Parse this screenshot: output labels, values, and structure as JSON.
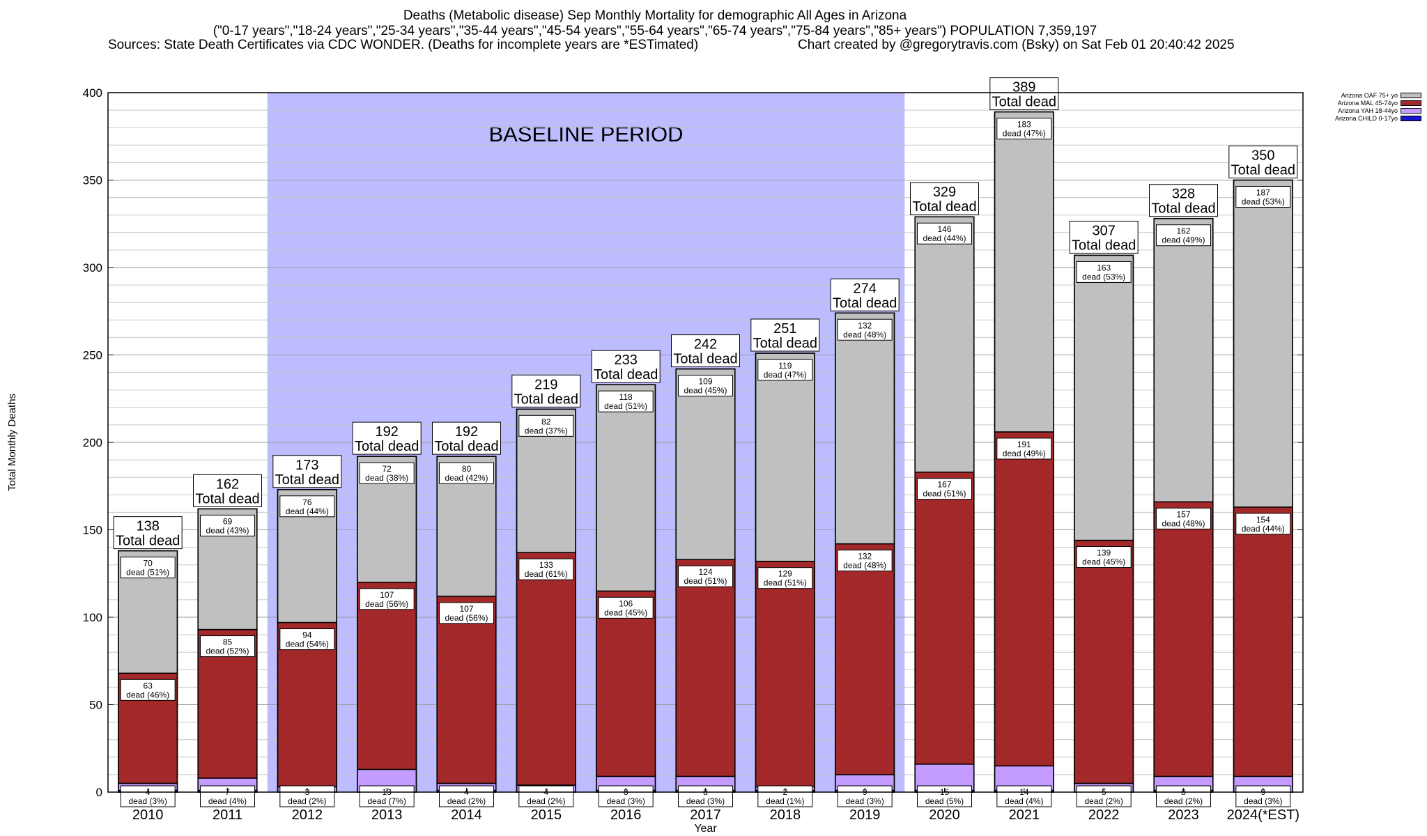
{
  "header": {
    "title_1": "Deaths (Metabolic disease) Sep Monthly Mortality for demographic All Ages in Arizona",
    "title_2": "(\"0-17 years\",\"18-24 years\",\"25-34 years\",\"35-44 years\",\"45-54 years\",\"55-64 years\",\"65-74 years\",\"75-84 years\",\"85+ years\") POPULATION 7,359,197",
    "sources": "Sources: State Death Certificates via CDC WONDER. (Deaths for incomplete years are *ESTimated)",
    "credit": "Chart created by @gregorytravis.com (Bsky) on Sat Feb 01 20:40:42 2025"
  },
  "legend": [
    {
      "label": "Arizona OAF 75+ yo",
      "color": "#c0c0c0"
    },
    {
      "label": "Arizona MAL 45-74yo",
      "color": "#a3282a"
    },
    {
      "label": "Arizona YAH 18-44yo",
      "color": "#c49cff"
    },
    {
      "label": "Arizona CHILD 0-17yo",
      "color": "#1a14c8"
    }
  ],
  "chart_data": {
    "type": "bar",
    "stacked": true,
    "xlabel": "Year",
    "ylabel": "Total Monthly Deaths",
    "ylim": [
      0,
      400
    ],
    "yticks": [
      0,
      50,
      100,
      150,
      200,
      250,
      300,
      350,
      400
    ],
    "grid": true,
    "legend_position": "top-right",
    "baseline": {
      "label": "BASELINE PERIOD",
      "from": "2012",
      "to": "2019",
      "color": "#bcbcff"
    },
    "categories": [
      "2010",
      "2011",
      "2012",
      "2013",
      "2014",
      "2015",
      "2016",
      "2017",
      "2018",
      "2019",
      "2020",
      "2021",
      "2022",
      "2023",
      "2024(*EST)"
    ],
    "totals": [
      138,
      162,
      173,
      192,
      192,
      219,
      233,
      242,
      251,
      274,
      329,
      389,
      307,
      328,
      350
    ],
    "total_label": "Total dead",
    "segment_word": "dead",
    "series": [
      {
        "name": "Arizona CHILD 0-17yo",
        "color": "#1a14c8",
        "values": [
          1,
          1,
          0,
          0,
          1,
          0,
          1,
          1,
          1,
          1,
          1,
          1,
          0,
          1,
          0
        ]
      },
      {
        "name": "Arizona YAH 18-44yo",
        "color": "#c49cff",
        "values": [
          4,
          7,
          3,
          13,
          4,
          4,
          8,
          8,
          2,
          9,
          15,
          14,
          5,
          8,
          9
        ],
        "pct": [
          "3%",
          "4%",
          "2%",
          "7%",
          "2%",
          "2%",
          "3%",
          "3%",
          "1%",
          "3%",
          "5%",
          "4%",
          "2%",
          "2%",
          "3%"
        ]
      },
      {
        "name": "Arizona MAL 45-74yo",
        "color": "#a3282a",
        "values": [
          63,
          85,
          94,
          107,
          107,
          133,
          106,
          124,
          129,
          132,
          167,
          191,
          139,
          157,
          154
        ],
        "pct": [
          "46%",
          "52%",
          "54%",
          "56%",
          "56%",
          "61%",
          "45%",
          "51%",
          "51%",
          "48%",
          "51%",
          "49%",
          "45%",
          "48%",
          "44%"
        ]
      },
      {
        "name": "Arizona OAF 75+ yo",
        "color": "#c0c0c0",
        "values": [
          70,
          69,
          76,
          72,
          80,
          82,
          118,
          109,
          119,
          132,
          146,
          183,
          163,
          162,
          187
        ],
        "pct": [
          "51%",
          "43%",
          "44%",
          "38%",
          "42%",
          "37%",
          "51%",
          "45%",
          "47%",
          "48%",
          "44%",
          "47%",
          "53%",
          "49%",
          "53%"
        ]
      }
    ]
  }
}
